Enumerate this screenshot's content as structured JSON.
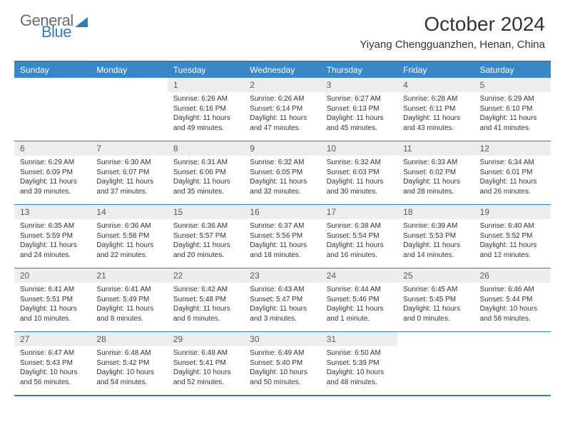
{
  "logo": {
    "word1": "General",
    "word2": "Blue"
  },
  "title": "October 2024",
  "location": "Yiyang Chengguanzhen, Henan, China",
  "colors": {
    "accent": "#2f7ac0",
    "header_bg": "#3a87c7",
    "daynum_bg": "#eceded",
    "text": "#333333"
  },
  "weekdays": [
    "Sunday",
    "Monday",
    "Tuesday",
    "Wednesday",
    "Thursday",
    "Friday",
    "Saturday"
  ],
  "weeks": [
    [
      {
        "n": "",
        "empty": true
      },
      {
        "n": "",
        "empty": true
      },
      {
        "n": "1",
        "sr": "Sunrise: 6:26 AM",
        "ss": "Sunset: 6:16 PM",
        "dl": "Daylight: 11 hours and 49 minutes."
      },
      {
        "n": "2",
        "sr": "Sunrise: 6:26 AM",
        "ss": "Sunset: 6:14 PM",
        "dl": "Daylight: 11 hours and 47 minutes."
      },
      {
        "n": "3",
        "sr": "Sunrise: 6:27 AM",
        "ss": "Sunset: 6:13 PM",
        "dl": "Daylight: 11 hours and 45 minutes."
      },
      {
        "n": "4",
        "sr": "Sunrise: 6:28 AM",
        "ss": "Sunset: 6:11 PM",
        "dl": "Daylight: 11 hours and 43 minutes."
      },
      {
        "n": "5",
        "sr": "Sunrise: 6:29 AM",
        "ss": "Sunset: 6:10 PM",
        "dl": "Daylight: 11 hours and 41 minutes."
      }
    ],
    [
      {
        "n": "6",
        "sr": "Sunrise: 6:29 AM",
        "ss": "Sunset: 6:09 PM",
        "dl": "Daylight: 11 hours and 39 minutes."
      },
      {
        "n": "7",
        "sr": "Sunrise: 6:30 AM",
        "ss": "Sunset: 6:07 PM",
        "dl": "Daylight: 11 hours and 37 minutes."
      },
      {
        "n": "8",
        "sr": "Sunrise: 6:31 AM",
        "ss": "Sunset: 6:06 PM",
        "dl": "Daylight: 11 hours and 35 minutes."
      },
      {
        "n": "9",
        "sr": "Sunrise: 6:32 AM",
        "ss": "Sunset: 6:05 PM",
        "dl": "Daylight: 11 hours and 32 minutes."
      },
      {
        "n": "10",
        "sr": "Sunrise: 6:32 AM",
        "ss": "Sunset: 6:03 PM",
        "dl": "Daylight: 11 hours and 30 minutes."
      },
      {
        "n": "11",
        "sr": "Sunrise: 6:33 AM",
        "ss": "Sunset: 6:02 PM",
        "dl": "Daylight: 11 hours and 28 minutes."
      },
      {
        "n": "12",
        "sr": "Sunrise: 6:34 AM",
        "ss": "Sunset: 6:01 PM",
        "dl": "Daylight: 11 hours and 26 minutes."
      }
    ],
    [
      {
        "n": "13",
        "sr": "Sunrise: 6:35 AM",
        "ss": "Sunset: 5:59 PM",
        "dl": "Daylight: 11 hours and 24 minutes."
      },
      {
        "n": "14",
        "sr": "Sunrise: 6:36 AM",
        "ss": "Sunset: 5:58 PM",
        "dl": "Daylight: 11 hours and 22 minutes."
      },
      {
        "n": "15",
        "sr": "Sunrise: 6:36 AM",
        "ss": "Sunset: 5:57 PM",
        "dl": "Daylight: 11 hours and 20 minutes."
      },
      {
        "n": "16",
        "sr": "Sunrise: 6:37 AM",
        "ss": "Sunset: 5:56 PM",
        "dl": "Daylight: 11 hours and 18 minutes."
      },
      {
        "n": "17",
        "sr": "Sunrise: 6:38 AM",
        "ss": "Sunset: 5:54 PM",
        "dl": "Daylight: 11 hours and 16 minutes."
      },
      {
        "n": "18",
        "sr": "Sunrise: 6:39 AM",
        "ss": "Sunset: 5:53 PM",
        "dl": "Daylight: 11 hours and 14 minutes."
      },
      {
        "n": "19",
        "sr": "Sunrise: 6:40 AM",
        "ss": "Sunset: 5:52 PM",
        "dl": "Daylight: 11 hours and 12 minutes."
      }
    ],
    [
      {
        "n": "20",
        "sr": "Sunrise: 6:41 AM",
        "ss": "Sunset: 5:51 PM",
        "dl": "Daylight: 11 hours and 10 minutes."
      },
      {
        "n": "21",
        "sr": "Sunrise: 6:41 AM",
        "ss": "Sunset: 5:49 PM",
        "dl": "Daylight: 11 hours and 8 minutes."
      },
      {
        "n": "22",
        "sr": "Sunrise: 6:42 AM",
        "ss": "Sunset: 5:48 PM",
        "dl": "Daylight: 11 hours and 6 minutes."
      },
      {
        "n": "23",
        "sr": "Sunrise: 6:43 AM",
        "ss": "Sunset: 5:47 PM",
        "dl": "Daylight: 11 hours and 3 minutes."
      },
      {
        "n": "24",
        "sr": "Sunrise: 6:44 AM",
        "ss": "Sunset: 5:46 PM",
        "dl": "Daylight: 11 hours and 1 minute."
      },
      {
        "n": "25",
        "sr": "Sunrise: 6:45 AM",
        "ss": "Sunset: 5:45 PM",
        "dl": "Daylight: 11 hours and 0 minutes."
      },
      {
        "n": "26",
        "sr": "Sunrise: 6:46 AM",
        "ss": "Sunset: 5:44 PM",
        "dl": "Daylight: 10 hours and 58 minutes."
      }
    ],
    [
      {
        "n": "27",
        "sr": "Sunrise: 6:47 AM",
        "ss": "Sunset: 5:43 PM",
        "dl": "Daylight: 10 hours and 56 minutes."
      },
      {
        "n": "28",
        "sr": "Sunrise: 6:48 AM",
        "ss": "Sunset: 5:42 PM",
        "dl": "Daylight: 10 hours and 54 minutes."
      },
      {
        "n": "29",
        "sr": "Sunrise: 6:48 AM",
        "ss": "Sunset: 5:41 PM",
        "dl": "Daylight: 10 hours and 52 minutes."
      },
      {
        "n": "30",
        "sr": "Sunrise: 6:49 AM",
        "ss": "Sunset: 5:40 PM",
        "dl": "Daylight: 10 hours and 50 minutes."
      },
      {
        "n": "31",
        "sr": "Sunrise: 6:50 AM",
        "ss": "Sunset: 5:39 PM",
        "dl": "Daylight: 10 hours and 48 minutes."
      },
      {
        "n": "",
        "empty": true
      },
      {
        "n": "",
        "empty": true
      }
    ]
  ]
}
